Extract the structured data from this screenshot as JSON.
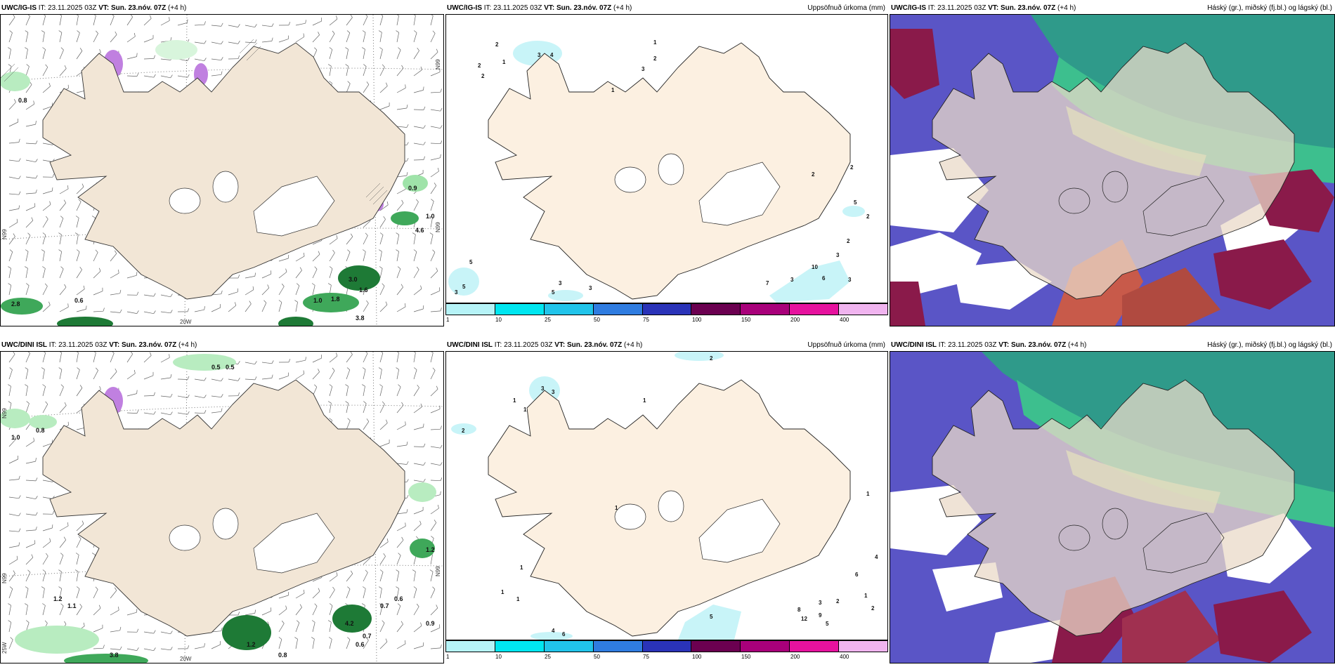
{
  "panels": [
    {
      "id": "top-left",
      "model": "UWC/IG-IS",
      "it_label": "IT:",
      "it_value": "23.11.2025 03Z",
      "vt_label": "VT:",
      "vt_value": "Sun. 23.nóv. 07Z",
      "lead": "(+4 h)",
      "right_title": "",
      "lat_labels": [
        "N99",
        "N99",
        "N99"
      ],
      "lon_labels": [
        "20W"
      ],
      "values": [
        "0.8",
        "0.9",
        "1.0",
        "4.6",
        "0.6",
        "3.0",
        "1.8",
        "1.0",
        "1.6",
        "3.8",
        "2.8"
      ]
    },
    {
      "id": "top-middle",
      "model": "UWC/IG-IS",
      "it_label": "IT:",
      "it_value": "23.11.2025 03Z",
      "vt_label": "VT:",
      "vt_value": "Sun. 23.nóv. 07Z",
      "lead": "(+4 h)",
      "right_title": "Uppsöfnuð úrkoma (mm)",
      "values": [
        "1",
        "2",
        "2",
        "2",
        "1",
        "3",
        "4",
        "2",
        "3",
        "1",
        "2",
        "2",
        "5",
        "2",
        "3",
        "2",
        "5",
        "3",
        "10",
        "6",
        "3",
        "7",
        "3",
        "5",
        "3",
        "5",
        "3"
      ]
    },
    {
      "id": "top-right",
      "model": "UWC/IG-IS",
      "it_label": "IT:",
      "it_value": "23.11.2025 03Z",
      "vt_label": "VT:",
      "vt_value": "Sun. 23.nóv. 07Z",
      "lead": "(+4 h)",
      "right_title": "Háský (gr.), miðský (fj.bl.) og lágský (bl.)"
    },
    {
      "id": "bottom-left",
      "model": "UWC/DINI ISL",
      "it_label": "IT:",
      "it_value": "23.11.2025 03Z",
      "vt_label": "VT:",
      "vt_value": "Sun. 23.nóv. 07Z",
      "lead": "(+4 h)",
      "right_title": "",
      "lat_labels": [
        "N99",
        "N99",
        "N99"
      ],
      "lon_labels": [
        "20W",
        "25W"
      ],
      "values": [
        "0.5",
        "0.5",
        "0.8",
        "1.0",
        "1.2",
        "1.1",
        "0.6",
        "0.7",
        "0.9",
        "1.2",
        "4.2",
        "1.2",
        "0.6",
        "0.7",
        "0.8",
        "3.8"
      ]
    },
    {
      "id": "bottom-middle",
      "model": "UWC/DINI ISL",
      "it_label": "IT:",
      "it_value": "23.11.2025 03Z",
      "vt_label": "VT:",
      "vt_value": "Sun. 23.nóv. 07Z",
      "lead": "(+4 h)",
      "right_title": "Uppsöfnuð úrkoma (mm)",
      "values": [
        "2",
        "3",
        "3",
        "1",
        "1",
        "2",
        "1",
        "1",
        "1",
        "1",
        "4",
        "6",
        "1",
        "5",
        "1",
        "8",
        "3",
        "2",
        "12",
        "9",
        "5",
        "2",
        "1",
        "4",
        "6"
      ]
    },
    {
      "id": "bottom-right",
      "model": "UWC/DINI ISL",
      "it_label": "IT:",
      "it_value": "23.11.2025 03Z",
      "vt_label": "VT:",
      "vt_value": "Sun. 23.nóv. 07Z",
      "lead": "(+4 h)",
      "right_title": "Háský (gr.), miðský (fj.bl.) og lágský (bl.)"
    }
  ],
  "colorbar": {
    "ticks": [
      "1",
      "10",
      "25",
      "50",
      "75",
      "100",
      "150",
      "200",
      "400"
    ],
    "colors": [
      "#b6f3f7",
      "#00e6f0",
      "#21c4ea",
      "#2f7ce0",
      "#2a33b8",
      "#6b0050",
      "#a8007a",
      "#e6129e",
      "#f0b4ef"
    ]
  }
}
